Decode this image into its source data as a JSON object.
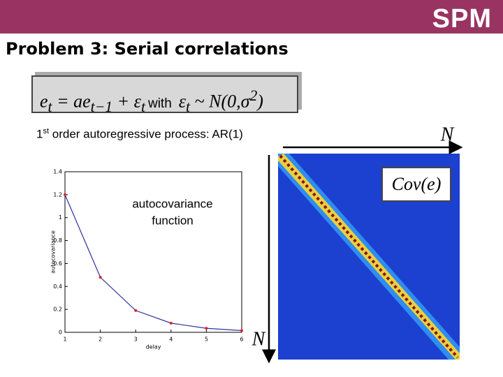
{
  "header": {
    "logo": "SPM",
    "title": "Problem 3: Serial correlations"
  },
  "formula": {
    "left": [
      "e",
      "t",
      " = ae",
      "t−1",
      " + ε",
      "t"
    ],
    "with": "with",
    "right": [
      "ε",
      "t",
      " ~ N(0,σ",
      "2",
      ")"
    ]
  },
  "caption": [
    "1",
    "st",
    " order autoregressive process: AR(1)"
  ],
  "matrix": {
    "label": "Cov(e)",
    "row_label": "N",
    "col_label": "N"
  },
  "chart_data": {
    "type": "line",
    "annotation": [
      "autocovariance",
      "function"
    ],
    "x": [
      1,
      2,
      3,
      4,
      5,
      6
    ],
    "values": [
      1.2,
      0.48,
      0.19,
      0.08,
      0.035,
      0.015
    ],
    "color": "#3030a0",
    "marker_color": "#e02030",
    "xlim": [
      1,
      6
    ],
    "xticks": [
      1,
      2,
      3,
      4,
      5,
      6
    ],
    "ylim": [
      0,
      1.4
    ],
    "yticks": [
      0,
      0.2,
      0.4,
      0.6,
      0.8,
      1,
      1.2,
      1.4
    ],
    "xlabel": "delay",
    "ylabel": "autocovariance"
  }
}
